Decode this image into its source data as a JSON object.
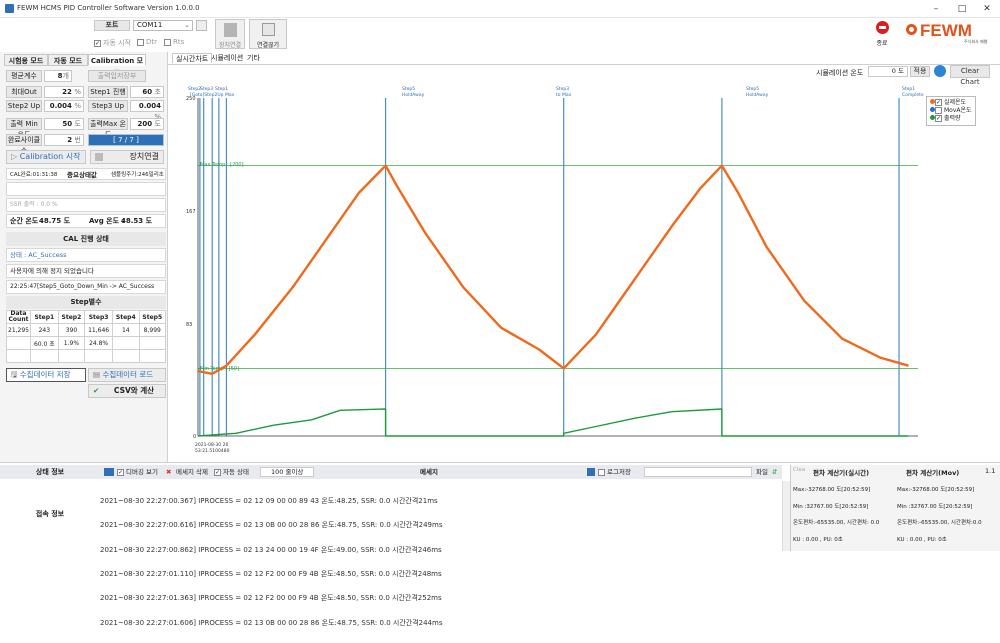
{
  "window": {
    "title": "FEWM HCMS PID Controller Software Version 1.0.0.0",
    "min": "–",
    "max": "□",
    "close": "✕"
  },
  "toolbar": {
    "port_label": "포트",
    "port_value": "COM11",
    "auto_start": "자동 시작",
    "dtr": "Dtr",
    "rts": "Rts",
    "connect": "장치연결",
    "disconnect": "연결끊기",
    "exit": "종료",
    "logo": "FEWM",
    "logo_sub": "주식회사 페웸"
  },
  "left": {
    "tabs": [
      "시험용 모드",
      "자동 모드",
      "Calibration 모드"
    ],
    "avg_count_label": "평균계수",
    "avg_count_value": "8",
    "avg_count_unit": "개",
    "output_save_btn": "출력입저장부",
    "max_out_label": "최대Out",
    "max_out_value": "22",
    "max_out_unit": "%",
    "step1_label": "Step1 진행",
    "step1_value": "60",
    "step1_unit": "초",
    "step2up_label": "Step2 Up",
    "step2up_value": "0.004",
    "step2up_unit": "%",
    "step3up_label": "Step3 Up",
    "step3up_value": "0.004",
    "step3up_unit": "%",
    "out_min_label": "출력 Min 온도",
    "out_min_value": "50",
    "out_min_unit": "도",
    "out_max_label": "출력Max 온도",
    "out_max_value": "200",
    "out_max_unit": "도",
    "repeat_label": "완료사이클수",
    "repeat_value": "2",
    "repeat_unit": "번",
    "progress_text": "[ 7 / 7 ]",
    "cal_start": "Calibration 시작",
    "dev_connect": "장치연결",
    "cal_done": "CAL완료:01:31:38",
    "status_mid": "중요상태값",
    "status_right": "샘플링주기:246밀리초",
    "ssr_out": "SSR 출력 : 0.0 %",
    "cur_temp_label": "순간 온도 :",
    "cur_temp_value": "48.75 도",
    "avg_temp_label": "Avg 온도 :",
    "avg_temp_value": "48.53 도",
    "cal_status_title": "CAL 진행 상태",
    "state_line": "상태 : AC_Success",
    "msg_line": "사용자에 의해 정지 되었습니다",
    "step_line": "22:25:47[Step5_Goto_Down_Min -> AC_Success",
    "step_title": "Step별수",
    "table_headers": [
      "Data Count",
      "Step1",
      "Step2",
      "Step3",
      "Step4",
      "Step5"
    ],
    "table_row1": [
      "21,295",
      "243",
      "390",
      "11,646",
      "14",
      "8,999"
    ],
    "table_row2": [
      "",
      "60.0 초",
      "1.9%",
      "24.8%",
      "",
      ""
    ],
    "save_data": "수집데이터 저장",
    "load_data": "수집데이터 로드",
    "csv_calc": "CSV와 계산"
  },
  "chart": {
    "tabs": [
      "실시간차트",
      "시뮬레이션",
      "기타"
    ],
    "sim_label": "시뮬레이션 온도",
    "sim_value": "0",
    "sim_unit": "도",
    "apply": "적용",
    "clear": "Clear Chart",
    "max_line_label": "Max Temp : [200]",
    "min_line_label": "Min Temp : [50]",
    "ytick_top": "250",
    "ytick_2": "167",
    "ytick_3": "83",
    "ytick_0": "0",
    "x_start": "2021-08-30 20",
    "x_start2": "53:21.5100480",
    "step_labels": [
      {
        "t1": "Step2",
        "t2": "Step3",
        "t3": "Step1",
        "sub": "[Goto]Step2Up Max"
      },
      {
        "t1": "Step5",
        "sub": "HoldAway"
      },
      {
        "t1": "Step3",
        "sub": "to Max"
      },
      {
        "t1": "Step5",
        "sub": "HoldAway"
      },
      {
        "t1": "Step1",
        "sub": "Complete"
      }
    ],
    "legend": [
      "실제온도",
      "MovA온도",
      "출력량"
    ],
    "colors": {
      "temp": "#ee6a1c",
      "mova": "#2a6bd4",
      "out": "#1f9a3a",
      "step": "#4a8ec9",
      "limit": "#3aa83a"
    }
  },
  "chart_data": {
    "type": "line",
    "ylim": [
      0,
      250
    ],
    "max_line": 200,
    "min_line": 50,
    "series": [
      {
        "name": "실제온도",
        "points": [
          [
            0,
            48
          ],
          [
            1.5,
            46
          ],
          [
            3,
            52
          ],
          [
            6,
            75
          ],
          [
            10,
            110
          ],
          [
            14,
            150
          ],
          [
            17,
            180
          ],
          [
            19.8,
            200
          ],
          [
            21,
            185
          ],
          [
            24,
            150
          ],
          [
            28,
            110
          ],
          [
            32,
            80
          ],
          [
            36,
            64
          ],
          [
            38.6,
            50
          ],
          [
            42,
            75
          ],
          [
            46,
            115
          ],
          [
            50,
            155
          ],
          [
            53,
            183
          ],
          [
            55.3,
            200
          ],
          [
            57,
            180
          ],
          [
            60,
            140
          ],
          [
            64,
            100
          ],
          [
            68,
            72
          ],
          [
            72,
            58
          ],
          [
            75,
            52
          ]
        ]
      },
      {
        "name": "출력량",
        "points": [
          [
            0,
            0
          ],
          [
            4,
            2
          ],
          [
            8,
            8
          ],
          [
            12,
            12
          ],
          [
            15,
            19
          ],
          [
            19.8,
            20
          ],
          [
            19.8,
            0
          ],
          [
            38.6,
            0
          ],
          [
            38.6,
            2
          ],
          [
            42,
            7
          ],
          [
            46,
            13
          ],
          [
            50,
            18
          ],
          [
            55.3,
            20
          ],
          [
            55.3,
            0
          ],
          [
            75,
            0
          ]
        ]
      }
    ],
    "step_x": [
      0.2,
      0.6,
      1.5,
      2.2,
      3,
      19.8,
      38.6,
      55.3,
      74
    ],
    "xlim": [
      0,
      76
    ]
  },
  "bottom": {
    "status_info": "상태 정보",
    "conn_info": "접속 정보",
    "debug_view": "디버깅 보기",
    "clear_debug": "메세지 삭제",
    "auto_state": "자동 상태",
    "lines": "100 줄이상",
    "message": "메세지",
    "log_save": "로그저장",
    "file": "파일",
    "clea": "Clea",
    "calc_live": "편차 계산기(실시간)",
    "calc_mov": "편차 계산기(Mov)",
    "ver": "1.1",
    "log": [
      "2021~08-30 22:27:00.367] IPROCESS = 02 12 09 00 00 89 43 온도:48.25, SSR: 0.0 시간간격21ms",
      "2021~08-30 22:27:00.616] IPROCESS = 02 13 0B 00 00 28 86 온도:48.75, SSR: 0.0 시간간격249ms",
      "2021~08-30 22:27:00.862] IPROCESS = 02 13 24 00 00 19 4F 온도:49.00, SSR: 0.0 시간간격246ms",
      "2021~08-30 22:27:01.110] IPROCESS = 02 12 F2 00 00 F9 4B 온도:48.50, SSR: 0.0 시간간격248ms",
      "2021~08-30 22:27:01.363] IPROCESS = 02 12 F2 00 00 F9 4B 온도:48.50, SSR: 0.0 시간간격252ms",
      "2021~08-30 22:27:01.606] IPROCESS = 02 13 0B 00 00 28 86 온도:48.75, SSR: 0.0 시간간격244ms"
    ],
    "live_max": "Max:-32768.00 도[20:52:59]",
    "live_min": "Min :32767.00 도[20:52:59]",
    "live_dev": "온도편차:-65535.00, 시간편차: 0.0",
    "live_ku": "KU : 0.00 , PU: 0초",
    "mov_max": "Max:-32768.00 도[20:52:59]",
    "mov_min": "Min :32767.00 도[20:52:59]",
    "mov_dev": "온도편차:-65535.00, 시간편차:0.0",
    "mov_ku": "KU : 0.00 , PU: 0초"
  }
}
